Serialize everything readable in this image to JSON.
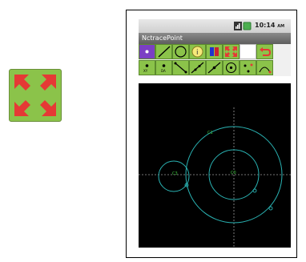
{
  "status_bar": {
    "time": "10:14",
    "ampm": "AM",
    "icons": [
      "signal-icon",
      "battery-icon"
    ]
  },
  "app": {
    "title": "NctracePoint"
  },
  "toolbar": {
    "row1": [
      "point-tool",
      "line-tool",
      "circle-tool",
      "info-tool",
      "stack-tool",
      "fullscreen-tool",
      "blank-tool",
      "undo-tool"
    ],
    "row2": [
      "xy-point-tool",
      "distance-tool",
      "segment-tool",
      "line-points-tool",
      "midpoint-tool",
      "center-point-tool",
      "intersect-tool",
      "trace-tool"
    ],
    "labels": {
      "xy": "XY",
      "dist": "DA"
    }
  },
  "canvas": {
    "labels": {
      "c1": "C1",
      "c2": "C2",
      "c3": "C3",
      "center": "C0"
    },
    "colors": {
      "background": "#000000",
      "curve": "#2ab3b3",
      "axis": "#9a9a9a",
      "label": "#3ec43e"
    }
  },
  "colors": {
    "tool_green": "#8bc34a",
    "tool_purple": "#7b3fc4",
    "arrow_red": "#e53935"
  }
}
